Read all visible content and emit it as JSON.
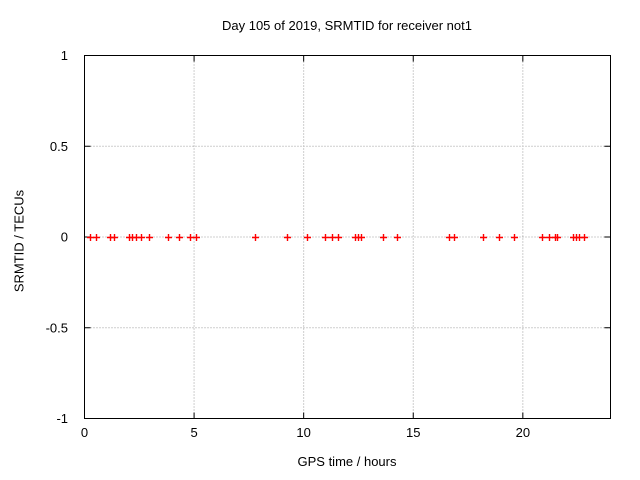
{
  "window": {
    "background_color": "#ffffff"
  },
  "chart_data": {
    "type": "scatter",
    "title": "Day 105 of 2019, SRMTID for receiver not1",
    "xlabel": "GPS time / hours",
    "ylabel": "SRMTID / TECUs",
    "xlim": [
      0,
      24
    ],
    "ylim": [
      -1,
      1
    ],
    "xticks": [
      0,
      5,
      10,
      15,
      20
    ],
    "xtick_labels": [
      "0",
      "5",
      "10",
      "15",
      "20"
    ],
    "yticks": [
      -1,
      -0.5,
      0,
      0.5,
      1
    ],
    "ytick_labels": [
      "-1",
      "-0.5",
      "0",
      "0.5",
      "1"
    ],
    "grid": true,
    "legend": "none",
    "marker": "plus",
    "colors": {
      "marker": "#ff0000",
      "grid": "#9e9e9e",
      "axis": "#000000",
      "text": "#000000"
    },
    "series": [
      {
        "name": "SRMTID",
        "x": [
          0.26,
          0.53,
          1.17,
          1.36,
          2.04,
          2.18,
          2.36,
          2.57,
          2.94,
          3.79,
          4.3,
          4.8,
          5.11,
          7.77,
          9.22,
          10.16,
          10.97,
          11.31,
          11.58,
          12.35,
          12.48,
          12.62,
          13.64,
          14.25,
          16.61,
          16.88,
          18.2,
          18.9,
          19.58,
          20.88,
          21.18,
          21.49,
          21.58,
          22.28,
          22.44,
          22.55,
          22.77
        ],
        "y": [
          0,
          0,
          0,
          0,
          0,
          0,
          0,
          0,
          0,
          0,
          0,
          0,
          0,
          0,
          0,
          0,
          0,
          0,
          0,
          0,
          0,
          0,
          0,
          0,
          0,
          0,
          0,
          0,
          0,
          0,
          0,
          0,
          0,
          0,
          0,
          0,
          0
        ]
      }
    ]
  }
}
